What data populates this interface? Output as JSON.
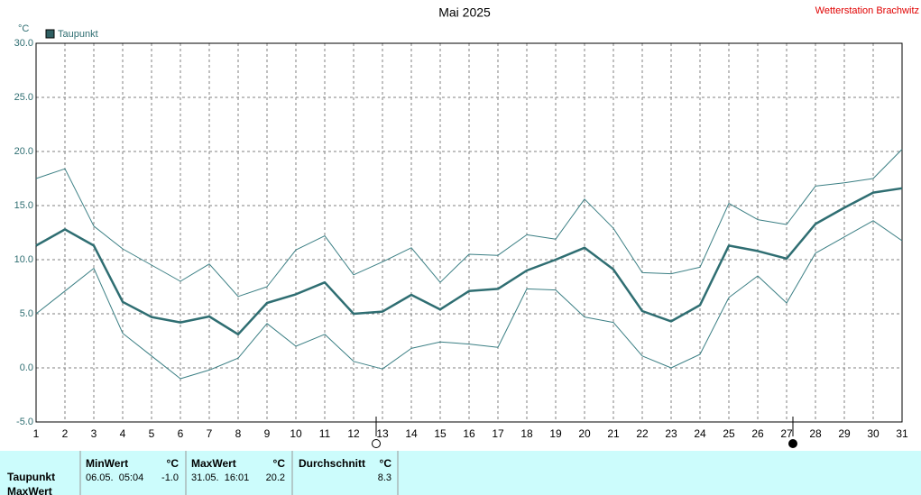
{
  "chart_data": {
    "type": "line",
    "title": "Mai 2025",
    "station": "Wetterstation Brachwitz",
    "unit": "°C",
    "x": [
      1,
      2,
      3,
      4,
      5,
      6,
      7,
      8,
      9,
      10,
      11,
      12,
      13,
      14,
      15,
      16,
      17,
      18,
      19,
      20,
      21,
      22,
      23,
      24,
      25,
      26,
      27,
      28,
      29,
      30,
      31
    ],
    "series": [
      {
        "name": "Taupunkt",
        "color": "#2f6e72",
        "values": [
          11.3,
          12.8,
          11.3,
          6.1,
          4.7,
          4.2,
          4.75,
          3.1,
          6.0,
          6.8,
          7.9,
          5.0,
          5.2,
          6.75,
          5.4,
          7.1,
          7.3,
          9.0,
          10.0,
          11.1,
          9.1,
          5.25,
          4.3,
          5.8,
          11.3,
          10.8,
          10.1,
          13.3,
          14.8,
          16.2,
          16.6
        ]
      },
      {
        "color": "#3b7f84",
        "values": [
          17.5,
          18.4,
          13.1,
          11.0,
          9.5,
          8.0,
          9.6,
          6.6,
          7.5,
          10.9,
          12.2,
          8.6,
          9.8,
          11.1,
          7.9,
          10.5,
          10.4,
          12.3,
          11.9,
          15.6,
          12.9,
          8.8,
          8.7,
          9.3,
          15.2,
          13.7,
          13.25,
          16.8,
          17.1,
          17.5,
          20.2
        ]
      },
      {
        "color": "#3b7f84",
        "values": [
          5.0,
          7.1,
          9.2,
          3.2,
          1.1,
          -1.0,
          -0.2,
          0.9,
          4.1,
          2.0,
          3.1,
          0.6,
          -0.1,
          1.8,
          2.4,
          2.2,
          1.9,
          7.3,
          7.2,
          4.7,
          4.2,
          1.1,
          0.0,
          1.25,
          6.5,
          8.5,
          6.0,
          10.6,
          12.1,
          13.6,
          11.75
        ]
      }
    ],
    "xlim": [
      1,
      31
    ],
    "xticks": [
      1,
      2,
      3,
      4,
      5,
      6,
      7,
      8,
      9,
      10,
      11,
      12,
      13,
      14,
      15,
      16,
      17,
      18,
      19,
      20,
      21,
      22,
      23,
      24,
      25,
      26,
      27,
      28,
      29,
      30,
      31
    ],
    "ylim": [
      -5,
      30
    ],
    "yticks": [
      {
        "value": -5,
        "label": "-5.0"
      },
      {
        "value": 0,
        "label": "0.0"
      },
      {
        "value": 5,
        "label": "5.0"
      },
      {
        "value": 10,
        "label": "10.0"
      },
      {
        "value": 15,
        "label": "15.0"
      },
      {
        "value": 20,
        "label": "20.0"
      },
      {
        "value": 25,
        "label": "25.0"
      },
      {
        "value": 30,
        "label": "30.0"
      }
    ],
    "grid": true
  },
  "summary": {
    "row_labels": [
      "Taupunkt",
      "MaxWert"
    ],
    "columns": [
      {
        "header": "MinWert",
        "unit": "°C",
        "time": "06.05.  05:04",
        "value": "-1.0"
      },
      {
        "header": "MaxWert",
        "unit": "°C",
        "time": "31.05.  16:01",
        "value": "20.2"
      },
      {
        "header": "Durchschnitt",
        "unit": "°C",
        "value": "8.3"
      }
    ]
  }
}
